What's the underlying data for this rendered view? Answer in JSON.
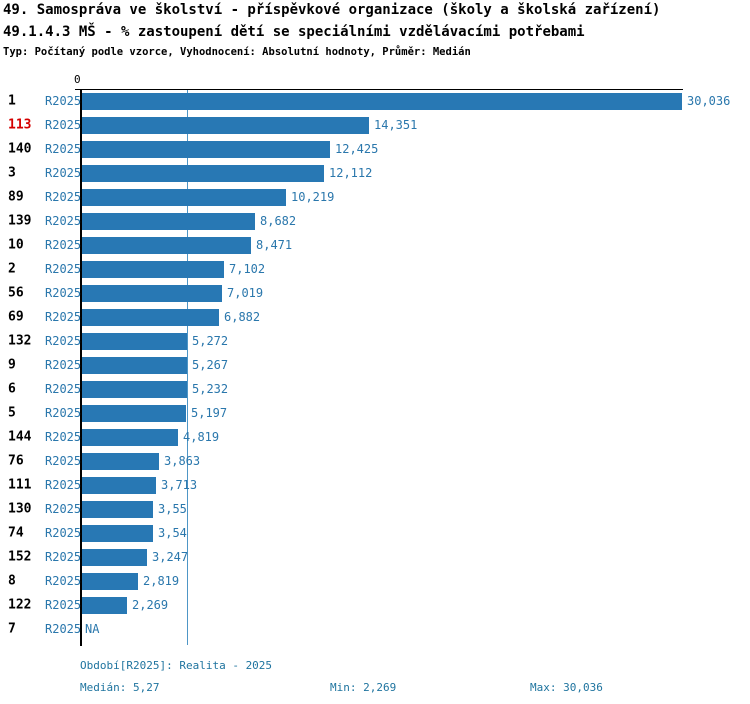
{
  "header": {
    "title_line1": "49. Samospráva ve školství - příspěvkové organizace (školy a školská zařízení)",
    "title_line2": "49.1.4.3 MŠ - % zastoupení dětí se speciálními vzdělávacími potřebami",
    "subtitle": "Typ: Počítaný podle vzorce, Vyhodnocení: Absolutní hodnoty, Průměr: Medián"
  },
  "chart_data": {
    "type": "bar",
    "orientation": "horizontal",
    "title": "49.1.4.3 MŠ - % zastoupení dětí se speciálními vzdělávacími potřebami",
    "axis_zero_label": "0",
    "xlim": [
      0,
      30.036
    ],
    "median_line_value": 5.27,
    "grid": "median-line-only",
    "period_label": "R2025",
    "rows": [
      {
        "entity": "1",
        "period": "R2025",
        "value": 30.036,
        "value_label": "30,036",
        "highlight": false
      },
      {
        "entity": "113",
        "period": "R2025",
        "value": 14.351,
        "value_label": "14,351",
        "highlight": true
      },
      {
        "entity": "140",
        "period": "R2025",
        "value": 12.425,
        "value_label": "12,425",
        "highlight": false
      },
      {
        "entity": "3",
        "period": "R2025",
        "value": 12.112,
        "value_label": "12,112",
        "highlight": false
      },
      {
        "entity": "89",
        "period": "R2025",
        "value": 10.219,
        "value_label": "10,219",
        "highlight": false
      },
      {
        "entity": "139",
        "period": "R2025",
        "value": 8.682,
        "value_label": "8,682",
        "highlight": false
      },
      {
        "entity": "10",
        "period": "R2025",
        "value": 8.471,
        "value_label": "8,471",
        "highlight": false
      },
      {
        "entity": "2",
        "period": "R2025",
        "value": 7.102,
        "value_label": "7,102",
        "highlight": false
      },
      {
        "entity": "56",
        "period": "R2025",
        "value": 7.019,
        "value_label": "7,019",
        "highlight": false
      },
      {
        "entity": "69",
        "period": "R2025",
        "value": 6.882,
        "value_label": "6,882",
        "highlight": false
      },
      {
        "entity": "132",
        "period": "R2025",
        "value": 5.272,
        "value_label": "5,272",
        "highlight": false
      },
      {
        "entity": "9",
        "period": "R2025",
        "value": 5.267,
        "value_label": "5,267",
        "highlight": false
      },
      {
        "entity": "6",
        "period": "R2025",
        "value": 5.232,
        "value_label": "5,232",
        "highlight": false
      },
      {
        "entity": "5",
        "period": "R2025",
        "value": 5.197,
        "value_label": "5,197",
        "highlight": false
      },
      {
        "entity": "144",
        "period": "R2025",
        "value": 4.819,
        "value_label": "4,819",
        "highlight": false
      },
      {
        "entity": "76",
        "period": "R2025",
        "value": 3.863,
        "value_label": "3,863",
        "highlight": false
      },
      {
        "entity": "111",
        "period": "R2025",
        "value": 3.713,
        "value_label": "3,713",
        "highlight": false
      },
      {
        "entity": "130",
        "period": "R2025",
        "value": 3.55,
        "value_label": "3,55",
        "highlight": false
      },
      {
        "entity": "74",
        "period": "R2025",
        "value": 3.54,
        "value_label": "3,54",
        "highlight": false
      },
      {
        "entity": "152",
        "period": "R2025",
        "value": 3.247,
        "value_label": "3,247",
        "highlight": false
      },
      {
        "entity": "8",
        "period": "R2025",
        "value": 2.819,
        "value_label": "2,819",
        "highlight": false
      },
      {
        "entity": "122",
        "period": "R2025",
        "value": 2.269,
        "value_label": "2,269",
        "highlight": false
      },
      {
        "entity": "7",
        "period": "R2025",
        "value": null,
        "value_label": "NA",
        "highlight": false
      }
    ]
  },
  "footer": {
    "period_line": "Období[R2025]: Realita - 2025",
    "median": "Medián: 5,27",
    "min": "Min: 2,269",
    "max": "Max: 30,036"
  },
  "colors": {
    "bar": "#2878b4",
    "value_text": "#2a77ac",
    "footer_text": "#1f749f",
    "highlight_entity": "#d40000",
    "axis": "#000000",
    "median_line": "#4e96c6"
  }
}
